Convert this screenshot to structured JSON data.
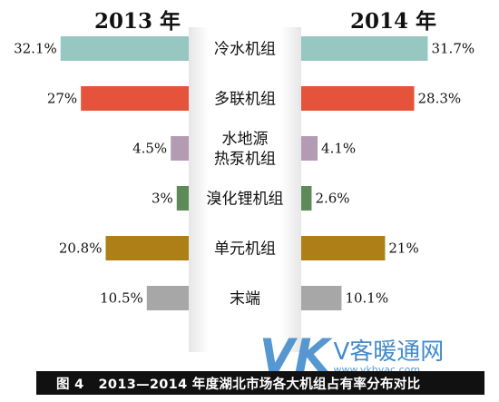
{
  "chart_data": {
    "type": "bar",
    "layout": "back-to-back horizontal",
    "categories": [
      "冷水机组",
      "多联机组",
      "水地源热泵机组",
      "溴化锂机组",
      "单元机组",
      "末端"
    ],
    "category_lines": [
      [
        "冷水机组"
      ],
      [
        "多联机组"
      ],
      [
        "水地源",
        "热泵机组"
      ],
      [
        "溴化锂机组"
      ],
      [
        "单元机组"
      ],
      [
        "末端"
      ]
    ],
    "series": [
      {
        "name": "2013 年",
        "values": [
          32.1,
          27,
          4.5,
          3,
          20.8,
          10.5
        ],
        "labels": [
          "32.1%",
          "27%",
          "4.5%",
          "3%",
          "20.8%",
          "10.5%"
        ]
      },
      {
        "name": "2014 年",
        "values": [
          31.7,
          28.3,
          4.1,
          2.6,
          21,
          10.1
        ],
        "labels": [
          "31.7%",
          "28.3%",
          "4.1%",
          "2.6%",
          "21%",
          "10.1%"
        ]
      }
    ],
    "colors": [
      "#96c7c1",
      "#e4533a",
      "#b39cb3",
      "#5e8a5a",
      "#ae7f16",
      "#a7a7a7"
    ],
    "unit": "%"
  },
  "caption": {
    "figure": "图 4",
    "text": "2013—2014 年度湖北市场各大机组占有率分布对比"
  },
  "watermark": {
    "mark": "VK",
    "name": "V客暖通网",
    "url": "www.vkhvac.com"
  }
}
